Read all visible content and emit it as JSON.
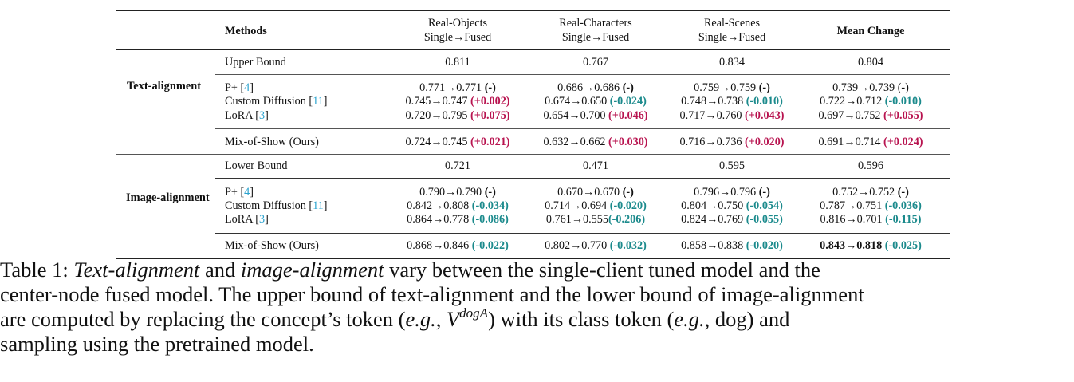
{
  "table": {
    "headers": {
      "methods": "Methods",
      "columns": [
        {
          "line1": "Real-Objects",
          "line2": "Single→Fused"
        },
        {
          "line1": "Real-Characters",
          "line2": "Single→Fused"
        },
        {
          "line1": "Real-Scenes",
          "line2": "Single→Fused"
        },
        {
          "line1": "Mean Change",
          "line2": ""
        }
      ]
    },
    "groups": [
      {
        "label": "Text-alignment",
        "bound": {
          "label": "Upper Bound",
          "values": [
            "0.811",
            "0.767",
            "0.834",
            "0.804"
          ]
        },
        "methods": [
          {
            "name": "P+ [",
            "cite": "4",
            "close": "]",
            "cells": [
              {
                "v": "0.771→0.771 ",
                "d": "(-)",
                "dt": "plain"
              },
              {
                "v": "0.686→0.686 ",
                "d": "(-)",
                "dt": "plain"
              },
              {
                "v": "0.759→0.759 ",
                "d": "(-)",
                "dt": "plain"
              },
              {
                "v": "0.739→0.739 ",
                "d": "(-)",
                "dt": "plainlight"
              }
            ]
          },
          {
            "name": "Custom Diffusion [",
            "cite": "11",
            "close": "]",
            "cells": [
              {
                "v": "0.745→0.747 ",
                "d": "(+0.002)",
                "dt": "pos"
              },
              {
                "v": "0.674→0.650 ",
                "d": "(-0.024)",
                "dt": "neg"
              },
              {
                "v": "0.748→0.738 ",
                "d": "(-0.010)",
                "dt": "neg"
              },
              {
                "v": "0.722→0.712 ",
                "d": "(-0.010)",
                "dt": "neg"
              }
            ]
          },
          {
            "name": "LoRA [",
            "cite": "3",
            "close": "]",
            "cells": [
              {
                "v": "0.720→0.795 ",
                "d": "(+0.075)",
                "dt": "pos"
              },
              {
                "v": "0.654→0.700 ",
                "d": "(+0.046)",
                "dt": "pos"
              },
              {
                "v": "0.717→0.760 ",
                "d": "(+0.043)",
                "dt": "pos"
              },
              {
                "v": "0.697→0.752 ",
                "d": "(+0.055)",
                "dt": "pos"
              }
            ]
          }
        ],
        "ours": {
          "name": "Mix-of-Show (Ours)",
          "cells": [
            {
              "v": "0.724→0.745 ",
              "d": "(+0.021)",
              "dt": "pos"
            },
            {
              "v": "0.632→0.662 ",
              "d": "(+0.030)",
              "dt": "pos"
            },
            {
              "v": "0.716→0.736 ",
              "d": "(+0.020)",
              "dt": "pos"
            },
            {
              "v": "0.691→0.714 ",
              "d": "(+0.024)",
              "dt": "pos"
            }
          ]
        }
      },
      {
        "label": "Image-alignment",
        "bound": {
          "label": "Lower Bound",
          "values": [
            "0.721",
            "0.471",
            "0.595",
            "0.596"
          ]
        },
        "methods": [
          {
            "name": "P+ [",
            "cite": "4",
            "close": "]",
            "cells": [
              {
                "v": "0.790→0.790 ",
                "d": "(-)",
                "dt": "plain"
              },
              {
                "v": "0.670→0.670 ",
                "d": "(-)",
                "dt": "plain"
              },
              {
                "v": "0.796→0.796 ",
                "d": "(-)",
                "dt": "plain"
              },
              {
                "v": "0.752→0.752 ",
                "d": "(-)",
                "dt": "plain"
              }
            ]
          },
          {
            "name": "Custom Diffusion [",
            "cite": "11",
            "close": "]",
            "cells": [
              {
                "v": "0.842→0.808 ",
                "d": "(-0.034)",
                "dt": "neg"
              },
              {
                "v": "0.714→0.694 ",
                "d": "(-0.020)",
                "dt": "neg"
              },
              {
                "v": "0.804→0.750 ",
                "d": "(-0.054)",
                "dt": "neg"
              },
              {
                "v": "0.787→0.751 ",
                "d": "(-0.036)",
                "dt": "neg"
              }
            ]
          },
          {
            "name": "LoRA [",
            "cite": "3",
            "close": "]",
            "cells": [
              {
                "v": "0.864→0.778 ",
                "d": "(-0.086)",
                "dt": "neg"
              },
              {
                "v": "0.761→0.555",
                "d": "(-0.206)",
                "dt": "neg"
              },
              {
                "v": "0.824→0.769 ",
                "d": "(-0.055)",
                "dt": "neg"
              },
              {
                "v": "0.816→0.701 ",
                "d": "(-0.115)",
                "dt": "neg"
              }
            ]
          }
        ],
        "ours": {
          "name": "Mix-of-Show (Ours)",
          "cells": [
            {
              "v": "0.868→0.846 ",
              "d": "(-0.022)",
              "dt": "neg"
            },
            {
              "v": "0.802→0.770 ",
              "d": "(-0.032)",
              "dt": "neg"
            },
            {
              "v": "0.858→0.838 ",
              "d": "(-0.020)",
              "dt": "neg"
            },
            {
              "v": "0.843→0.818 ",
              "d": "(-0.025)",
              "dt": "neg",
              "bold": true
            }
          ]
        }
      }
    ]
  },
  "caption": {
    "l1_a": "Table 1: ",
    "l1_it1": "Text-alignment",
    "l1_b": " and ",
    "l1_it2": "image-alignment",
    "l1_c": " vary between the single-client tuned model and the",
    "l2": "center-node fused model. The upper bound of text-alignment and the lower bound of image-alignment",
    "l3_a": "are computed by replacing the concept’s token (",
    "l3_eg1": "e.g.",
    "l3_b": ", ",
    "l3_V": "V",
    "l3_sup": "dogA",
    "l3_c": ") with its class token (",
    "l3_eg2": "e.g.",
    "l3_d": ", dog) and",
    "l4": "sampling using the pretrained model."
  },
  "colors": {
    "positive": "#b8134f",
    "negative": "#1b8a8c",
    "citation": "#2ba3cf"
  }
}
